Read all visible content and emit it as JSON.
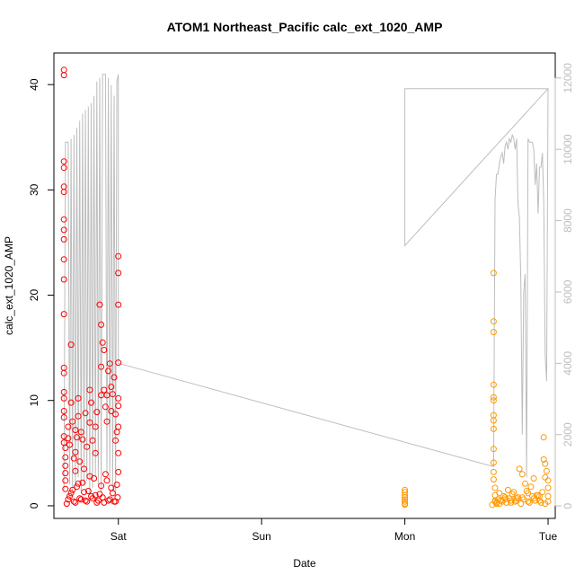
{
  "chart_data": {
    "type": "scatter",
    "title": "ATOM1 Northeast_Pacific calc_ext_1020_AMP",
    "xlabel": "Date",
    "ylabel": "calc_ext_1020_AMP",
    "x_axis": {
      "unit": "days",
      "range": [
        -0.45,
        3.05
      ],
      "ticks": [
        {
          "value": 0,
          "label": "Sat"
        },
        {
          "value": 1,
          "label": "Sun"
        },
        {
          "value": 2,
          "label": "Mon"
        },
        {
          "value": 3,
          "label": "Tue"
        }
      ]
    },
    "y_left": {
      "range": [
        -1.2,
        43
      ],
      "ticks": [
        0,
        10,
        20,
        30,
        40
      ]
    },
    "y_right": {
      "range": [
        -350,
        12700
      ],
      "ticks": [
        0,
        2000,
        4000,
        6000,
        8000,
        10000,
        12000
      ],
      "color": "#bdbdbd"
    },
    "colors": {
      "series_red": "#ff0000",
      "series_orange": "#ff9900",
      "line_gray": "#bdbdbd"
    },
    "series": [
      {
        "color_key": "series_red",
        "x": [
          -0.38,
          -0.38,
          -0.38,
          -0.38,
          -0.38,
          -0.38,
          -0.38,
          -0.38,
          -0.38,
          -0.38,
          -0.38,
          -0.38,
          -0.38,
          -0.38,
          -0.38,
          -0.38,
          -0.38,
          -0.38,
          -0.38,
          -0.38,
          -0.37,
          -0.37,
          -0.37,
          -0.37,
          -0.37,
          -0.37,
          -0.35,
          -0.35,
          -0.34,
          -0.33,
          -0.33,
          -0.32,
          -0.31,
          -0.3,
          -0.3,
          -0.3,
          -0.29,
          -0.28,
          -0.28,
          -0.27,
          -0.26,
          -0.25,
          -0.24,
          -0.23,
          -0.22,
          -0.2,
          -0.2,
          -0.19,
          -0.18,
          -0.16,
          -0.16,
          -0.15,
          -0.13,
          -0.12,
          -0.12,
          -0.12,
          -0.11,
          -0.1,
          -0.1,
          -0.09,
          -0.08,
          -0.08,
          -0.07,
          -0.06,
          -0.05,
          -0.05,
          -0.04,
          -0.03,
          -0.02,
          -0.02,
          -0.01,
          0.0,
          0.0,
          0.0,
          0.0,
          0.0,
          0.0,
          0.0,
          0.0,
          0.0,
          -0.35,
          -0.33,
          -0.31,
          -0.29,
          -0.27,
          -0.25,
          -0.23,
          -0.21,
          -0.19,
          -0.17,
          -0.15,
          -0.13,
          -0.11,
          -0.09,
          -0.07,
          -0.05,
          -0.03,
          -0.01,
          -0.36,
          -0.34,
          -0.32,
          -0.3,
          -0.28,
          -0.26,
          -0.24,
          -0.22,
          -0.2,
          -0.18,
          -0.16,
          -0.14,
          -0.12,
          -0.1,
          -0.08,
          -0.06,
          -0.04,
          -0.02,
          -0.005
        ],
        "y": [
          41.4,
          40.9,
          32.7,
          32.1,
          30.3,
          29.8,
          27.2,
          26.2,
          25.3,
          23.4,
          21.5,
          18.2,
          13.1,
          12.6,
          10.8,
          10.2,
          9.0,
          8.4,
          6.6,
          6.0,
          5.5,
          4.6,
          3.8,
          3.1,
          2.4,
          1.6,
          7.5,
          6.4,
          5.8,
          15.3,
          9.8,
          8.0,
          4.5,
          7.2,
          5.1,
          3.3,
          6.5,
          10.2,
          8.5,
          4.2,
          7.0,
          6.3,
          3.5,
          8.8,
          5.6,
          11.0,
          7.9,
          9.8,
          6.2,
          7.5,
          5.0,
          8.9,
          19.1,
          17.2,
          13.2,
          10.5,
          15.5,
          14.8,
          11.0,
          9.4,
          10.5,
          8.0,
          12.8,
          13.5,
          11.3,
          9.0,
          10.6,
          12.2,
          8.7,
          6.2,
          7.0,
          23.7,
          22.1,
          19.1,
          13.6,
          10.2,
          9.5,
          7.5,
          5.0,
          3.2,
          0.6,
          1.2,
          0.4,
          1.8,
          0.7,
          2.2,
          0.5,
          1.4,
          0.9,
          2.6,
          0.3,
          1.1,
          0.8,
          3.0,
          0.5,
          1.7,
          0.4,
          2.0,
          0.2,
          0.9,
          1.5,
          0.3,
          2.1,
          0.6,
          1.3,
          0.4,
          2.8,
          0.7,
          1.0,
          0.5,
          1.9,
          0.3,
          2.4,
          0.6,
          1.2,
          0.4,
          0.8
        ]
      },
      {
        "color_key": "series_orange",
        "x": [
          2.0,
          2.0,
          2.0,
          2.0,
          2.0,
          2.0,
          2.0,
          2.0,
          2.62,
          2.62,
          2.62,
          2.62,
          2.62,
          2.62,
          2.62,
          2.62,
          2.62,
          2.62,
          2.62,
          2.62,
          2.62,
          2.63,
          2.63,
          2.63,
          2.64,
          2.65,
          2.66,
          2.68,
          2.7,
          2.72,
          2.74,
          2.76,
          2.78,
          2.8,
          2.82,
          2.84,
          2.86,
          2.88,
          2.9,
          2.92,
          2.94,
          2.96,
          2.98,
          2.97,
          2.97,
          2.98,
          2.99,
          3.0,
          3.0,
          3.0,
          3.0,
          2.64,
          2.67,
          2.69,
          2.71,
          2.73,
          2.75,
          2.77,
          2.79,
          2.81,
          2.83,
          2.85,
          2.87,
          2.89,
          2.91,
          2.93,
          2.95,
          2.61,
          2.63,
          2.66,
          2.7,
          2.74,
          2.78,
          2.82,
          2.86,
          2.9,
          2.94,
          2.98
        ],
        "y": [
          1.5,
          1.3,
          1.0,
          0.8,
          0.6,
          0.4,
          0.2,
          0.1,
          22.1,
          17.5,
          16.5,
          11.5,
          10.3,
          10.0,
          8.6,
          8.1,
          7.3,
          5.4,
          4.1,
          3.2,
          2.5,
          1.7,
          1.0,
          0.5,
          0.3,
          0.6,
          1.2,
          0.4,
          0.8,
          1.5,
          0.5,
          1.3,
          0.7,
          3.5,
          3.0,
          2.1,
          1.2,
          1.8,
          2.6,
          1.0,
          0.5,
          1.3,
          2.7,
          6.5,
          4.4,
          4.0,
          3.3,
          2.4,
          1.7,
          0.9,
          0.4,
          0.2,
          0.5,
          0.9,
          0.3,
          0.7,
          1.1,
          0.4,
          0.8,
          0.2,
          0.6,
          1.4,
          0.3,
          0.9,
          0.5,
          1.0,
          0.3,
          0.1,
          0.4,
          0.2,
          0.6,
          0.3,
          0.5,
          0.8,
          0.4,
          0.7,
          0.9,
          0.2
        ]
      }
    ],
    "line": {
      "axis": "right",
      "x": [
        -0.38,
        -0.37,
        -0.35,
        -0.34,
        -0.33,
        -0.32,
        -0.31,
        -0.3,
        -0.29,
        -0.28,
        -0.27,
        -0.26,
        -0.25,
        -0.24,
        -0.23,
        -0.22,
        -0.21,
        -0.2,
        -0.19,
        -0.18,
        -0.17,
        -0.16,
        -0.15,
        -0.14,
        -0.13,
        -0.12,
        -0.11,
        -0.1,
        -0.09,
        -0.08,
        -0.07,
        -0.06,
        -0.05,
        -0.04,
        -0.03,
        -0.02,
        -0.01,
        0.0,
        0.0,
        2.62,
        2.63,
        2.64,
        2.65,
        2.66,
        2.67,
        2.68,
        2.69,
        2.7,
        2.71,
        2.72,
        2.73,
        2.74,
        2.75,
        2.76,
        2.77,
        2.78,
        2.79,
        2.8,
        2.81,
        2.82,
        2.83,
        2.84,
        2.85,
        2.86,
        2.87,
        2.88,
        2.89,
        2.9,
        2.91,
        2.92,
        2.93,
        2.94,
        2.95,
        2.96,
        2.97,
        2.98,
        2.99,
        3.0,
        2.99,
        2.0,
        2.0,
        3.0
      ],
      "y": [
        400,
        10200,
        10200,
        600,
        10300,
        400,
        10400,
        500,
        10600,
        800,
        10800,
        400,
        11000,
        600,
        11100,
        700,
        11200,
        300,
        11300,
        500,
        11500,
        800,
        11900,
        600,
        12000,
        400,
        12100,
        12100,
        12100,
        900,
        12000,
        700,
        11800,
        400,
        11500,
        300,
        11900,
        12100,
        4000,
        1100,
        8600,
        9300,
        9300,
        9600,
        9800,
        9900,
        9600,
        10100,
        10200,
        10000,
        10300,
        10200,
        10400,
        10300,
        10000,
        10300,
        8500,
        8100,
        6300,
        2000,
        6000,
        6500,
        800,
        10300,
        10200,
        10200,
        10200,
        10000,
        9000,
        9600,
        8200,
        9500,
        9500,
        9900,
        8500,
        4200,
        3500,
        11700,
        11700,
        11700,
        7300,
        11700
      ]
    }
  }
}
